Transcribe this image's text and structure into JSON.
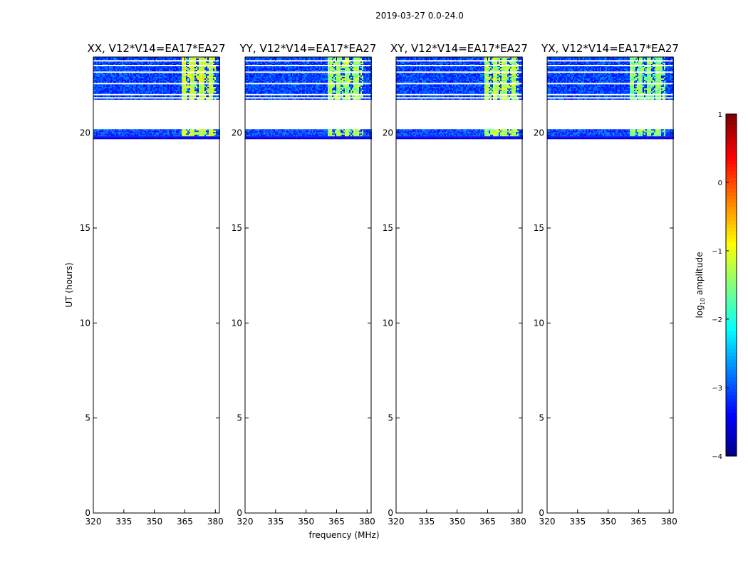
{
  "chart_data": {
    "type": "heatmap",
    "suptitle": "2019-03-27 0.0-24.0",
    "xlabel": "frequency (MHz)",
    "ylabel": "UT (hours)",
    "xlim": [
      320,
      382
    ],
    "ylim": [
      0,
      24
    ],
    "xticks": [
      "320",
      "335",
      "350",
      "365",
      "380"
    ],
    "xtick_values": [
      320,
      335,
      350,
      365,
      380
    ],
    "yticks": [
      "0",
      "5",
      "10",
      "15",
      "20"
    ],
    "ytick_values": [
      0,
      5,
      10,
      15,
      20
    ],
    "data_time_ranges": [
      [
        19.7,
        20.2
      ],
      [
        21.8,
        24.0
      ]
    ],
    "gap_times": [
      21.85,
      22.02,
      22.6,
      23.2,
      23.55,
      23.8
    ],
    "panels": [
      {
        "title": "XX, V12*V14=EA17*EA27",
        "rfi_range": [
          363,
          380
        ],
        "rfi_intensity": 0.62
      },
      {
        "title": "YY, V12*V14=EA17*EA27",
        "rfi_range": [
          360,
          378
        ],
        "rfi_intensity": 0.58
      },
      {
        "title": "XY, V12*V14=EA17*EA27",
        "rfi_range": [
          363,
          380
        ],
        "rfi_intensity": 0.6
      },
      {
        "title": "YX, V12*V14=EA17*EA27",
        "rfi_range": [
          360,
          378
        ],
        "rfi_intensity": 0.56
      }
    ],
    "colorbar": {
      "label_prefix": "log",
      "label_sub": "10",
      "label_suffix": " amplitude",
      "range": [
        -4,
        1
      ],
      "ticks": [
        "−4",
        "−3",
        "−2",
        "−1",
        "0",
        "1"
      ],
      "tick_values": [
        -4,
        -3,
        -2,
        -1,
        0,
        1
      ],
      "colormap": "jet"
    }
  }
}
